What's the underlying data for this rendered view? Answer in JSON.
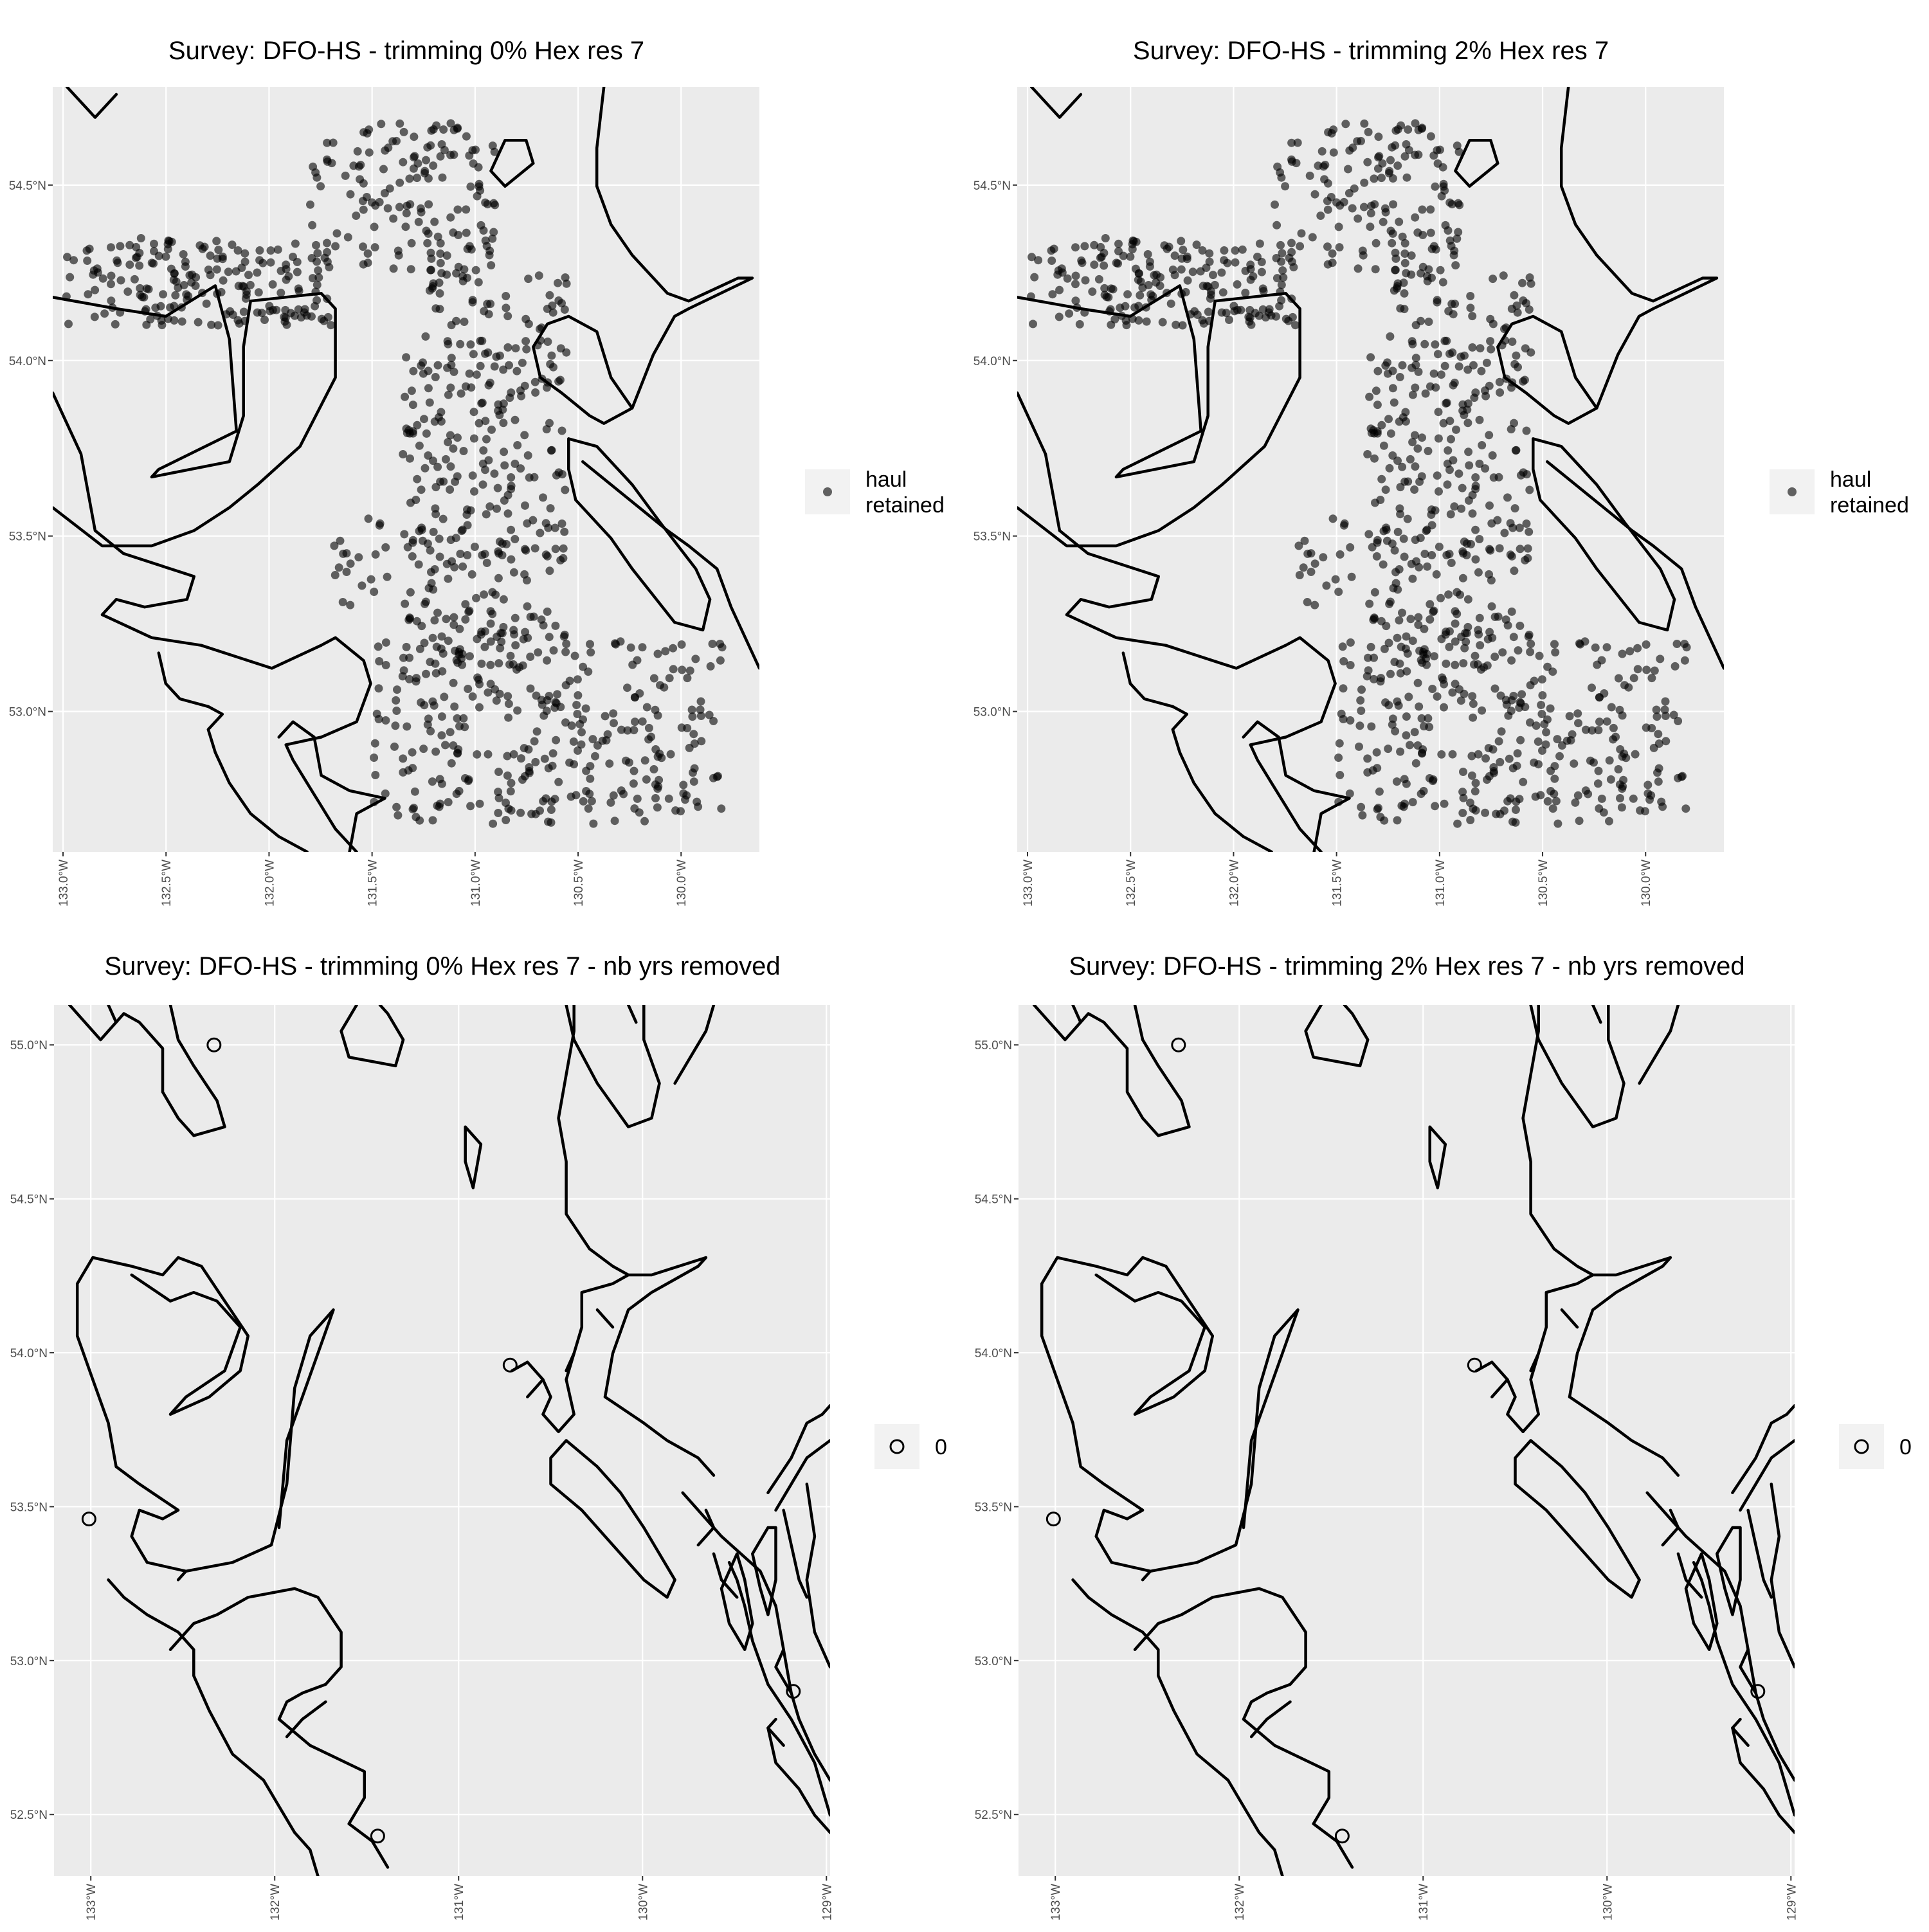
{
  "chart_data": [
    {
      "type": "scatter",
      "title": "Survey: DFO-HS - trimming 0% Hex res 7",
      "xlabel": "",
      "ylabel": "",
      "xlim": [
        -133.05,
        -129.62
      ],
      "ylim": [
        52.6,
        54.78
      ],
      "x_ticks": [
        -133.0,
        -132.5,
        -132.0,
        -131.5,
        -131.0,
        -130.5,
        -130.0
      ],
      "x_tick_labels": [
        "133.0°W",
        "132.5°W",
        "132.0°W",
        "131.5°W",
        "131.0°W",
        "130.5°W",
        "130.0°W"
      ],
      "y_ticks": [
        53.0,
        53.5,
        54.0,
        54.5
      ],
      "y_tick_labels": [
        "53.0°N",
        "53.5°N",
        "54.0°N",
        "54.5°N"
      ],
      "grid": true,
      "legend": {
        "position": "right",
        "entries": [
          {
            "label": "haul\nretained",
            "label_lines": [
              "haul",
              "retained"
            ],
            "marker": "filled-circle"
          }
        ]
      },
      "series": [
        {
          "name": "haul retained",
          "marker": "filled-circle",
          "color": "#000000",
          "opacity": 0.6,
          "clusters": [
            {
              "x_range": [
                -133.0,
                -131.7
              ],
              "y_range": [
                54.1,
                54.35
              ],
              "n": 190
            },
            {
              "x_range": [
                -131.8,
                -130.9
              ],
              "y_range": [
                54.25,
                54.68
              ],
              "n": 150
            },
            {
              "x_range": [
                -131.35,
                -130.55
              ],
              "y_range": [
                53.2,
                54.25
              ],
              "n": 330
            },
            {
              "x_range": [
                -131.7,
                -131.4
              ],
              "y_range": [
                53.3,
                53.55
              ],
              "n": 20
            },
            {
              "x_range": [
                -131.5,
                -129.8
              ],
              "y_range": [
                52.68,
                53.2
              ],
              "n": 330
            }
          ]
        }
      ]
    },
    {
      "type": "scatter",
      "title": "Survey: DFO-HS - trimming 2% Hex res 7",
      "xlabel": "",
      "ylabel": "",
      "xlim": [
        -133.05,
        -129.62
      ],
      "ylim": [
        52.6,
        54.78
      ],
      "x_ticks": [
        -133.0,
        -132.5,
        -132.0,
        -131.5,
        -131.0,
        -130.5,
        -130.0
      ],
      "x_tick_labels": [
        "133.0°W",
        "132.5°W",
        "132.0°W",
        "131.5°W",
        "131.0°W",
        "130.5°W",
        "130.0°W"
      ],
      "y_ticks": [
        53.0,
        53.5,
        54.0,
        54.5
      ],
      "y_tick_labels": [
        "53.0°N",
        "53.5°N",
        "54.0°N",
        "54.5°N"
      ],
      "grid": true,
      "legend": {
        "position": "right",
        "entries": [
          {
            "label": "haul\nretained",
            "label_lines": [
              "haul",
              "retained"
            ],
            "marker": "filled-circle"
          }
        ]
      },
      "series": [
        {
          "name": "haul retained",
          "marker": "filled-circle",
          "color": "#000000",
          "opacity": 0.6,
          "clusters": [
            {
              "x_range": [
                -133.0,
                -131.7
              ],
              "y_range": [
                54.1,
                54.35
              ],
              "n": 190
            },
            {
              "x_range": [
                -131.8,
                -130.9
              ],
              "y_range": [
                54.25,
                54.68
              ],
              "n": 150
            },
            {
              "x_range": [
                -131.35,
                -130.55
              ],
              "y_range": [
                53.2,
                54.25
              ],
              "n": 330
            },
            {
              "x_range": [
                -131.7,
                -131.4
              ],
              "y_range": [
                53.3,
                53.55
              ],
              "n": 20
            },
            {
              "x_range": [
                -131.5,
                -129.8
              ],
              "y_range": [
                52.68,
                53.2
              ],
              "n": 330
            }
          ]
        }
      ]
    },
    {
      "type": "scatter",
      "title": "Survey: DFO-HS - trimming 0% Hex res 7 - nb yrs removed",
      "xlabel": "",
      "ylabel": "",
      "xlim": [
        -133.2,
        -128.98
      ],
      "ylim": [
        52.3,
        55.13
      ],
      "x_ticks": [
        -133,
        -132,
        -131,
        -130,
        -129
      ],
      "x_tick_labels": [
        "133°W",
        "132°W",
        "131°W",
        "130°W",
        "129°W"
      ],
      "y_ticks": [
        52.5,
        53.0,
        53.5,
        54.0,
        54.5,
        55.0
      ],
      "y_tick_labels": [
        "52.5°N",
        "53.0°N",
        "53.5°N",
        "54.0°N",
        "54.5°N",
        "55.0°N"
      ],
      "grid": true,
      "legend": {
        "position": "right",
        "entries": [
          {
            "label": "0",
            "label_lines": [
              "0"
            ],
            "marker": "open-circle"
          }
        ]
      },
      "series": [
        {
          "name": "0",
          "marker": "open-circle",
          "x": [
            -132.33,
            -133.01,
            -130.72,
            -129.18,
            -131.44
          ],
          "y": [
            55.0,
            53.46,
            53.96,
            52.9,
            52.43
          ]
        }
      ]
    },
    {
      "type": "scatter",
      "title": "Survey: DFO-HS - trimming 2% Hex res 7 - nb yrs removed",
      "xlabel": "",
      "ylabel": "",
      "xlim": [
        -133.2,
        -128.98
      ],
      "ylim": [
        52.3,
        55.13
      ],
      "x_ticks": [
        -133,
        -132,
        -131,
        -130,
        -129
      ],
      "x_tick_labels": [
        "133°W",
        "132°W",
        "131°W",
        "130°W",
        "129°W"
      ],
      "y_ticks": [
        52.5,
        53.0,
        53.5,
        54.0,
        54.5,
        55.0
      ],
      "y_tick_labels": [
        "52.5°N",
        "53.0°N",
        "53.5°N",
        "54.0°N",
        "54.5°N",
        "55.0°N"
      ],
      "grid": true,
      "legend": {
        "position": "right",
        "entries": [
          {
            "label": "0",
            "label_lines": [
              "0"
            ],
            "marker": "open-circle"
          }
        ]
      },
      "series": [
        {
          "name": "0",
          "marker": "open-circle",
          "x": [
            -132.33,
            -133.01,
            -130.72,
            -129.18,
            -131.44
          ],
          "y": [
            55.0,
            53.46,
            53.96,
            52.9,
            52.43
          ]
        }
      ]
    }
  ]
}
